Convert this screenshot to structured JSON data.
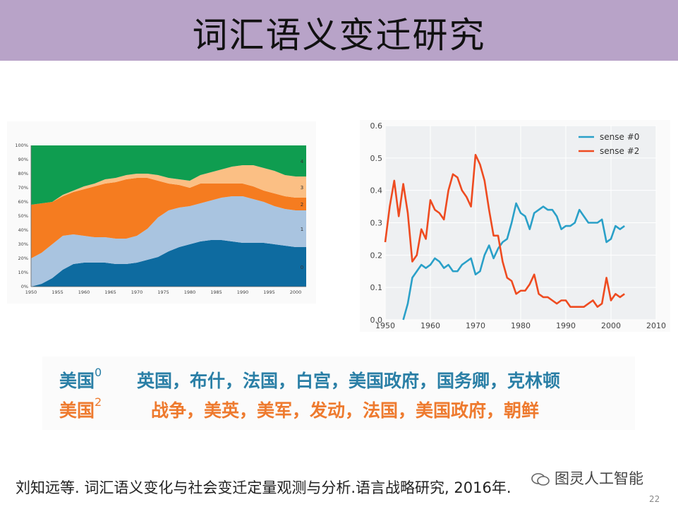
{
  "slide": {
    "title": "词汇语义变迁研究",
    "page_number": "22",
    "citation": "刘知远等. 词汇语义变化与社会变迁定量观测与分析.语言战略研究, 2016年.",
    "watermark": "图灵人工智能",
    "colors": {
      "title_bar": "#b8a3c8",
      "sense0": "#2a7fa6",
      "sense2": "#ee7a2e"
    }
  },
  "rows": [
    {
      "word": "美国",
      "sense": "0",
      "neighbors": "英国，布什，法国，白宫，美国政府，国务卿，克林顿"
    },
    {
      "word": "美国",
      "sense": "2",
      "neighbors": "战争，美英，美军，发动，法国，美国政府，朝鲜"
    }
  ],
  "chart_data": [
    {
      "type": "area",
      "title": "",
      "stacked": true,
      "x": [
        1950,
        1952,
        1954,
        1956,
        1958,
        1960,
        1962,
        1964,
        1966,
        1968,
        1970,
        1972,
        1974,
        1976,
        1978,
        1980,
        1982,
        1984,
        1986,
        1988,
        1990,
        1992,
        1994,
        1996,
        1998,
        2000,
        2002
      ],
      "xticks": [
        "1950",
        "1955",
        "1960",
        "1965",
        "1970",
        "1975",
        "1980",
        "1985",
        "1990",
        "1995",
        "2000"
      ],
      "yticks": [
        "0%",
        "10%",
        "20%",
        "30%",
        "40%",
        "50%",
        "60%",
        "70%",
        "80%",
        "90%",
        "100%"
      ],
      "ylim": [
        0,
        100
      ],
      "series": [
        {
          "name": "0",
          "color": "#0e6ba0",
          "values": [
            0,
            2,
            6,
            12,
            16,
            17,
            17,
            17,
            16,
            16,
            17,
            19,
            21,
            25,
            28,
            30,
            32,
            33,
            33,
            32,
            31,
            31,
            31,
            30,
            29,
            28,
            28
          ]
        },
        {
          "name": "1",
          "color": "#a9c4e0",
          "values": [
            20,
            22,
            24,
            24,
            21,
            19,
            18,
            18,
            18,
            18,
            19,
            22,
            28,
            29,
            28,
            27,
            27,
            28,
            30,
            32,
            33,
            31,
            29,
            27,
            26,
            26,
            26
          ]
        },
        {
          "name": "2",
          "color": "#f57c20",
          "values": [
            38,
            35,
            30,
            28,
            30,
            33,
            36,
            38,
            40,
            42,
            41,
            36,
            26,
            19,
            16,
            13,
            14,
            12,
            10,
            9,
            9,
            9,
            8,
            9,
            9,
            9,
            9
          ]
        },
        {
          "name": "3",
          "color": "#fbbf84",
          "values": [
            0,
            0,
            0,
            1,
            1,
            2,
            2,
            3,
            3,
            3,
            3,
            3,
            4,
            4,
            4,
            5,
            6,
            8,
            10,
            12,
            13,
            15,
            16,
            16,
            15,
            15,
            15
          ]
        },
        {
          "name": "4",
          "color": "#0f9d50",
          "values": [
            42,
            41,
            40,
            35,
            32,
            29,
            27,
            24,
            23,
            21,
            20,
            20,
            21,
            23,
            24,
            25,
            21,
            19,
            17,
            15,
            14,
            14,
            16,
            18,
            21,
            22,
            22
          ]
        }
      ]
    },
    {
      "type": "line",
      "title": "",
      "xlim": [
        1950,
        2010
      ],
      "ylim": [
        0.0,
        0.6
      ],
      "xticks": [
        "1950",
        "1960",
        "1970",
        "1980",
        "1990",
        "2000",
        "2010"
      ],
      "yticks": [
        "0.0",
        "0.1",
        "0.2",
        "0.3",
        "0.4",
        "0.5",
        "0.6"
      ],
      "legend": "top-right",
      "series": [
        {
          "name": "sense #0",
          "color": "#2aa0c8",
          "x": [
            1954,
            1955,
            1956,
            1957,
            1958,
            1959,
            1960,
            1961,
            1962,
            1963,
            1964,
            1965,
            1966,
            1967,
            1968,
            1969,
            1970,
            1971,
            1972,
            1973,
            1974,
            1975,
            1976,
            1977,
            1978,
            1979,
            1980,
            1981,
            1982,
            1983,
            1984,
            1985,
            1986,
            1987,
            1988,
            1989,
            1990,
            1991,
            1992,
            1993,
            1994,
            1995,
            1996,
            1997,
            1998,
            1999,
            2000,
            2001,
            2002,
            2003
          ],
          "y": [
            0.0,
            0.05,
            0.13,
            0.15,
            0.17,
            0.16,
            0.17,
            0.19,
            0.18,
            0.16,
            0.17,
            0.15,
            0.15,
            0.17,
            0.18,
            0.19,
            0.14,
            0.15,
            0.2,
            0.23,
            0.19,
            0.22,
            0.24,
            0.25,
            0.3,
            0.36,
            0.33,
            0.32,
            0.28,
            0.33,
            0.34,
            0.35,
            0.34,
            0.34,
            0.32,
            0.28,
            0.29,
            0.29,
            0.3,
            0.34,
            0.32,
            0.3,
            0.3,
            0.3,
            0.31,
            0.24,
            0.25,
            0.29,
            0.28,
            0.29
          ]
        },
        {
          "name": "sense #2",
          "color": "#ee4b20",
          "x": [
            1950,
            1951,
            1952,
            1953,
            1954,
            1955,
            1956,
            1957,
            1958,
            1959,
            1960,
            1961,
            1962,
            1963,
            1964,
            1965,
            1966,
            1967,
            1968,
            1969,
            1970,
            1971,
            1972,
            1973,
            1974,
            1975,
            1976,
            1977,
            1978,
            1979,
            1980,
            1981,
            1982,
            1983,
            1984,
            1985,
            1986,
            1987,
            1988,
            1989,
            1990,
            1991,
            1992,
            1993,
            1994,
            1995,
            1996,
            1997,
            1998,
            1999,
            2000,
            2001,
            2002,
            2003
          ],
          "y": [
            0.24,
            0.35,
            0.43,
            0.32,
            0.42,
            0.33,
            0.18,
            0.2,
            0.28,
            0.25,
            0.37,
            0.34,
            0.33,
            0.31,
            0.4,
            0.45,
            0.44,
            0.4,
            0.38,
            0.35,
            0.51,
            0.48,
            0.43,
            0.34,
            0.26,
            0.26,
            0.18,
            0.13,
            0.12,
            0.08,
            0.09,
            0.09,
            0.11,
            0.14,
            0.08,
            0.07,
            0.07,
            0.06,
            0.05,
            0.06,
            0.06,
            0.04,
            0.04,
            0.04,
            0.04,
            0.05,
            0.06,
            0.04,
            0.05,
            0.13,
            0.06,
            0.08,
            0.07,
            0.08
          ]
        }
      ]
    }
  ]
}
